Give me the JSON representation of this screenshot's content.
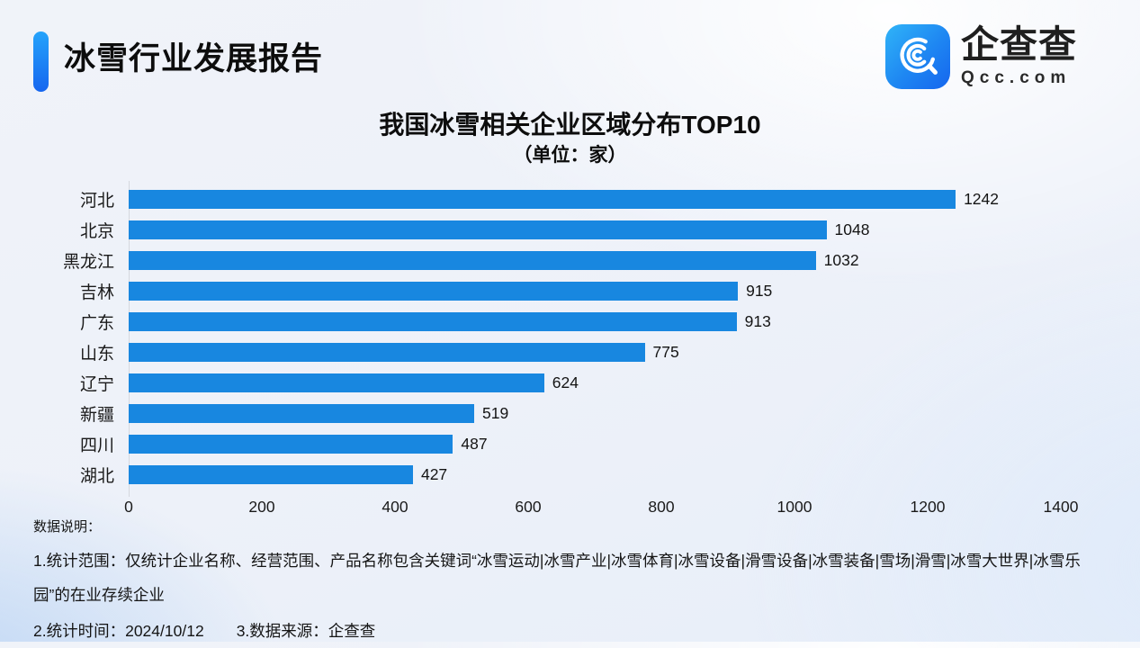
{
  "header": {
    "report_title": "冰雪行业发展报告"
  },
  "logo": {
    "name": "企查查",
    "domain": "Qcc.com",
    "badge_icon": "qcc-magnifier-icon",
    "badge_color_top": "#30b4f8",
    "badge_color_bottom": "#1565ee"
  },
  "chart_data": {
    "type": "bar",
    "orientation": "horizontal",
    "title": "我国冰雪相关企业区域分布TOP10",
    "subtitle": "（单位：家）",
    "categories": [
      "河北",
      "北京",
      "黑龙江",
      "吉林",
      "广东",
      "山东",
      "辽宁",
      "新疆",
      "四川",
      "湖北"
    ],
    "values": [
      1242,
      1048,
      1032,
      915,
      913,
      775,
      624,
      519,
      487,
      427
    ],
    "xlim": [
      0,
      1400
    ],
    "x_ticks": [
      0,
      200,
      400,
      600,
      800,
      1000,
      1200,
      1400
    ],
    "bar_color": "#1887e0",
    "grid": false,
    "value_labels": true,
    "legend": "none"
  },
  "footer": {
    "heading": "数据说明：",
    "note1": "1.统计范围：仅统计企业名称、经营范围、产品名称包含关键词“冰雪运动|冰雪产业|冰雪体育|冰雪设备|滑雪设备|冰雪装备|雪场|滑雪|冰雪大世界|冰雪乐园”的在业存续企业",
    "note2": "2.统计时间：2024/10/12",
    "note3": "3.数据来源：企查查"
  },
  "colors": {
    "accent_gradient_top": "#25a3fb",
    "accent_gradient_bottom": "#1666ef",
    "bar": "#1887e0",
    "axis_line": "#d5d8de",
    "text": "#1a1a1a",
    "background": "#edf1f9"
  }
}
